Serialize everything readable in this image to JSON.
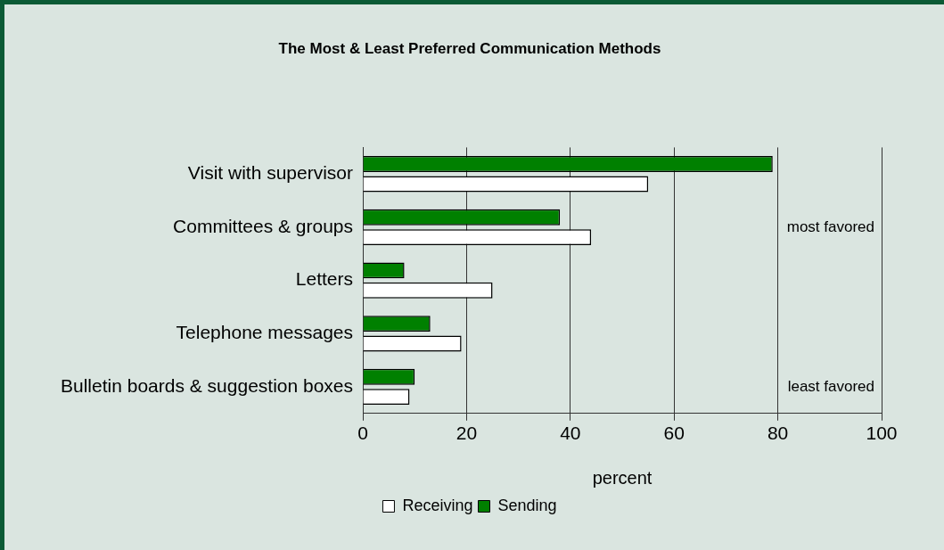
{
  "chart_data": {
    "type": "bar",
    "orientation": "horizontal",
    "title": "The Most & Least Preferred Communication Methods",
    "xlabel": "percent",
    "categories": [
      "Visit with supervisor",
      "Committees & groups",
      "Letters",
      "Telephone messages",
      "Bulletin boards & suggestion boxes"
    ],
    "series": [
      {
        "name": "Sending",
        "color": "#008000",
        "values": [
          79,
          38,
          8,
          13,
          10
        ]
      },
      {
        "name": "Receiving",
        "color": "#ffffff",
        "values": [
          55,
          44,
          25,
          19,
          9
        ]
      }
    ],
    "xlim": [
      0,
      100
    ],
    "xticks": [
      0,
      20,
      40,
      60,
      80,
      100
    ],
    "grid": "x",
    "legend": "bottom",
    "annotations": [
      "most favored",
      "least favored"
    ]
  }
}
